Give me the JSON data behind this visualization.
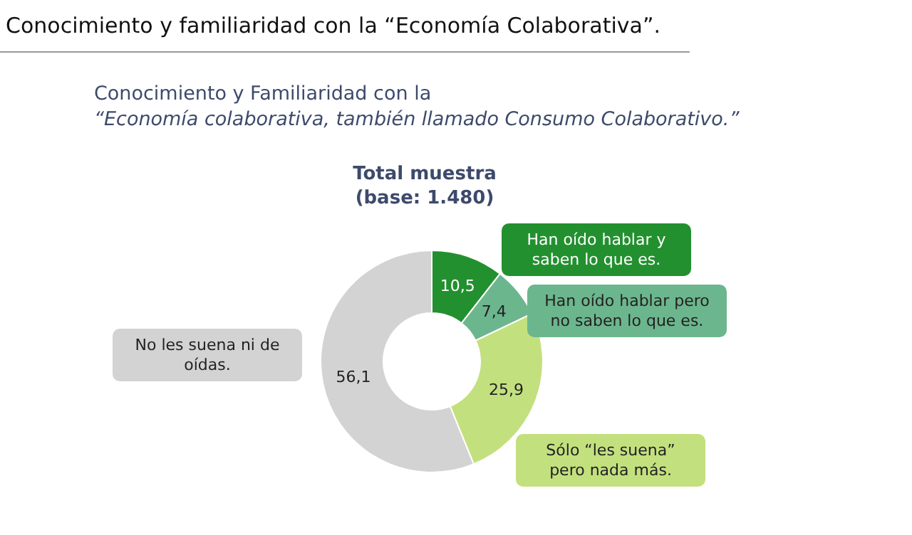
{
  "chart_data": {
    "type": "donut",
    "title": "Conocimiento y familiaridad con la “Economía Colaborativa”.",
    "subtitle": "Conocimiento y Familiaridad con la “Economía colaborativa, también llamado Consumo Colaborativo.”",
    "annotations": [
      "Total muestra (base: 1.480)"
    ],
    "categories": [
      "Han oído hablar y saben lo que es.",
      "Han oído hablar pero no saben lo que es.",
      "Sólo “les suena” pero nada más.",
      "No les suena ni de oídas."
    ],
    "values": [
      10.5,
      7.4,
      25.9,
      56.1
    ],
    "value_labels": [
      "10,5",
      "7,4",
      "25,9",
      "56,1"
    ],
    "colors": [
      "#23902f",
      "#6cb68e",
      "#c3e07e",
      "#d3d3d3"
    ]
  }
}
